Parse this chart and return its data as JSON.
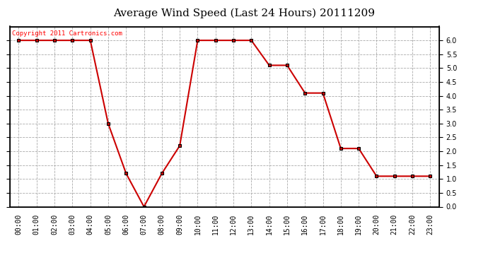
{
  "title": "Average Wind Speed (Last 24 Hours) 20111209",
  "copyright": "Copyright 2011 Cartronics.com",
  "x_labels": [
    "00:00",
    "01:00",
    "02:00",
    "03:00",
    "04:00",
    "05:00",
    "06:00",
    "07:00",
    "08:00",
    "09:00",
    "10:00",
    "11:00",
    "12:00",
    "13:00",
    "14:00",
    "15:00",
    "16:00",
    "17:00",
    "18:00",
    "19:00",
    "20:00",
    "21:00",
    "22:00",
    "23:00"
  ],
  "y_values": [
    6.0,
    6.0,
    6.0,
    6.0,
    6.0,
    3.0,
    1.2,
    0.0,
    1.2,
    2.2,
    6.0,
    6.0,
    6.0,
    6.0,
    5.1,
    5.1,
    4.1,
    4.1,
    2.1,
    2.1,
    1.1,
    1.1,
    1.1,
    1.1
  ],
  "line_color": "#cc0000",
  "marker": "s",
  "marker_size": 3,
  "marker_color": "#cc0000",
  "ylim": [
    0.0,
    6.5
  ],
  "yticks": [
    0.0,
    0.5,
    1.0,
    1.5,
    2.0,
    2.5,
    3.0,
    3.5,
    4.0,
    4.5,
    5.0,
    5.5,
    6.0
  ],
  "grid_color": "#aaaaaa",
  "bg_color": "#ffffff",
  "plot_bg_color": "#ffffff",
  "title_fontsize": 11,
  "copyright_fontsize": 6.5,
  "tick_fontsize": 7,
  "linewidth": 1.5
}
